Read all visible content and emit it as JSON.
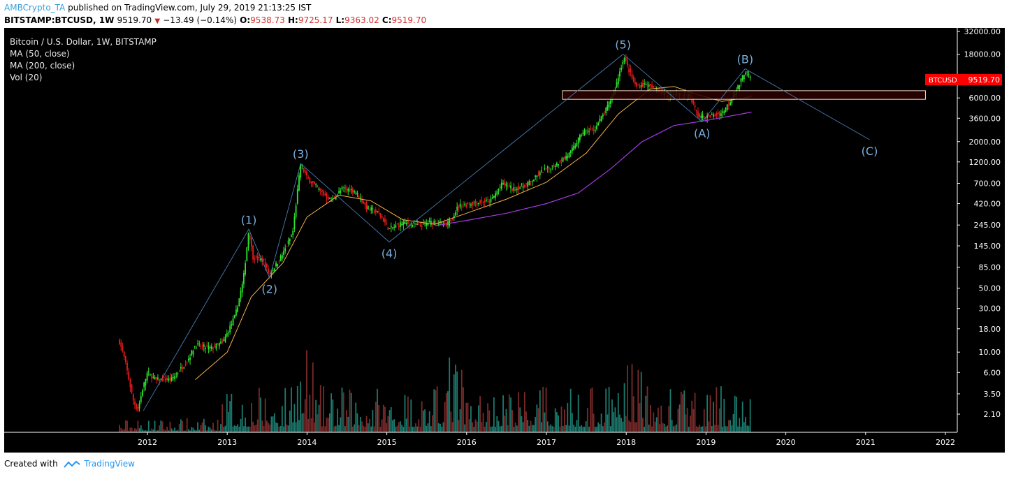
{
  "header": {
    "author": "AMBCrypto_TA",
    "published_text": "published on TradingView.com, July 29, 2019 21:13:25 IST",
    "symbol": "BITSTAMP:BTCUSD, 1W",
    "price": "9519.70",
    "change": "−13.49 (−0.14%)",
    "open_label": "O:",
    "open": "9538.73",
    "high_label": "H:",
    "high": "9725.17",
    "low_label": "L:",
    "low": "9363.02",
    "close_label": "C:",
    "close": "9519.70"
  },
  "legend": {
    "title": "Bitcoin / U.S. Dollar, 1W, BITSTAMP",
    "ma50": "MA (50, close)",
    "ma200": "MA (200, close)",
    "vol": "Vol (20)"
  },
  "footer": {
    "created_with": "Created with",
    "brand": "TradingView"
  },
  "colors": {
    "background": "#000000",
    "up": "#2ee62e",
    "down": "#e61a1a",
    "ma50": "#f2b24c",
    "ma200": "#a23adf",
    "wave_lines": "#4a7bb0",
    "wave_labels": "#7ab0e0",
    "zone_fill": "#2a0000",
    "zone_border": "#f0d8c0",
    "price_tag": "#ff0000",
    "vol_up": "#1b7a6e",
    "vol_down": "#7a2a2a"
  },
  "chart_data": {
    "type": "candlestick",
    "scale": "log",
    "x_labels": [
      "2012",
      "2013",
      "2014",
      "2015",
      "2016",
      "2017",
      "2018",
      "2019",
      "2020",
      "2021",
      "2022"
    ],
    "y_ticks": [
      "32000.00",
      "18000.00",
      "10000.00",
      "6000.00",
      "3600.00",
      "2000.00",
      "1200.00",
      "700.00",
      "420.00",
      "245.00",
      "145.00",
      "85.00",
      "50.00",
      "30.00",
      "18.00",
      "10.00",
      "6.00",
      "3.50",
      "2.10"
    ],
    "price_tag": {
      "label": "BTCUSD",
      "value": "9519.70"
    },
    "price_path": [
      {
        "t": 2011.65,
        "p": 13
      },
      {
        "t": 2011.72,
        "p": 8
      },
      {
        "t": 2011.82,
        "p": 3
      },
      {
        "t": 2011.88,
        "p": 2.3
      },
      {
        "t": 2011.94,
        "p": 4
      },
      {
        "t": 2012.0,
        "p": 6
      },
      {
        "t": 2012.1,
        "p": 5
      },
      {
        "t": 2012.3,
        "p": 5
      },
      {
        "t": 2012.5,
        "p": 8
      },
      {
        "t": 2012.6,
        "p": 12
      },
      {
        "t": 2012.8,
        "p": 11
      },
      {
        "t": 2012.95,
        "p": 13
      },
      {
        "t": 2013.1,
        "p": 25
      },
      {
        "t": 2013.2,
        "p": 60
      },
      {
        "t": 2013.27,
        "p": 220
      },
      {
        "t": 2013.32,
        "p": 110
      },
      {
        "t": 2013.45,
        "p": 100
      },
      {
        "t": 2013.53,
        "p": 70
      },
      {
        "t": 2013.7,
        "p": 120
      },
      {
        "t": 2013.82,
        "p": 200
      },
      {
        "t": 2013.92,
        "p": 1150
      },
      {
        "t": 2014.0,
        "p": 800
      },
      {
        "t": 2014.15,
        "p": 600
      },
      {
        "t": 2014.3,
        "p": 450
      },
      {
        "t": 2014.45,
        "p": 620
      },
      {
        "t": 2014.6,
        "p": 580
      },
      {
        "t": 2014.75,
        "p": 380
      },
      {
        "t": 2014.9,
        "p": 330
      },
      {
        "t": 2015.03,
        "p": 220
      },
      {
        "t": 2015.2,
        "p": 260
      },
      {
        "t": 2015.4,
        "p": 240
      },
      {
        "t": 2015.6,
        "p": 270
      },
      {
        "t": 2015.75,
        "p": 240
      },
      {
        "t": 2015.9,
        "p": 400
      },
      {
        "t": 2016.05,
        "p": 420
      },
      {
        "t": 2016.3,
        "p": 450
      },
      {
        "t": 2016.45,
        "p": 700
      },
      {
        "t": 2016.6,
        "p": 600
      },
      {
        "t": 2016.8,
        "p": 720
      },
      {
        "t": 2016.95,
        "p": 950
      },
      {
        "t": 2017.1,
        "p": 1100
      },
      {
        "t": 2017.3,
        "p": 1500
      },
      {
        "t": 2017.45,
        "p": 2500
      },
      {
        "t": 2017.6,
        "p": 2700
      },
      {
        "t": 2017.75,
        "p": 4500
      },
      {
        "t": 2017.85,
        "p": 7000
      },
      {
        "t": 2017.97,
        "p": 17000
      },
      {
        "t": 2018.05,
        "p": 11000
      },
      {
        "t": 2018.12,
        "p": 8000
      },
      {
        "t": 2018.25,
        "p": 8500
      },
      {
        "t": 2018.35,
        "p": 7500
      },
      {
        "t": 2018.5,
        "p": 6500
      },
      {
        "t": 2018.65,
        "p": 6600
      },
      {
        "t": 2018.8,
        "p": 6300
      },
      {
        "t": 2018.9,
        "p": 3800
      },
      {
        "t": 2019.0,
        "p": 3700
      },
      {
        "t": 2019.2,
        "p": 4100
      },
      {
        "t": 2019.3,
        "p": 5500
      },
      {
        "t": 2019.42,
        "p": 8500
      },
      {
        "t": 2019.49,
        "p": 12000
      },
      {
        "t": 2019.57,
        "p": 9519.7
      }
    ],
    "ma50": [
      {
        "t": 2012.6,
        "p": 5
      },
      {
        "t": 2013.0,
        "p": 10
      },
      {
        "t": 2013.3,
        "p": 40
      },
      {
        "t": 2013.7,
        "p": 95
      },
      {
        "t": 2014.0,
        "p": 300
      },
      {
        "t": 2014.4,
        "p": 520
      },
      {
        "t": 2014.8,
        "p": 450
      },
      {
        "t": 2015.2,
        "p": 280
      },
      {
        "t": 2015.6,
        "p": 250
      },
      {
        "t": 2016.0,
        "p": 330
      },
      {
        "t": 2016.5,
        "p": 470
      },
      {
        "t": 2017.0,
        "p": 720
      },
      {
        "t": 2017.5,
        "p": 1500
      },
      {
        "t": 2017.9,
        "p": 4000
      },
      {
        "t": 2018.3,
        "p": 7500
      },
      {
        "t": 2018.6,
        "p": 8000
      },
      {
        "t": 2018.9,
        "p": 6500
      },
      {
        "t": 2019.2,
        "p": 5500
      },
      {
        "t": 2019.57,
        "p": 6200
      }
    ],
    "ma200": [
      {
        "t": 2015.6,
        "p": 240
      },
      {
        "t": 2016.0,
        "p": 275
      },
      {
        "t": 2016.5,
        "p": 330
      },
      {
        "t": 2017.0,
        "p": 420
      },
      {
        "t": 2017.4,
        "p": 550
      },
      {
        "t": 2017.8,
        "p": 1000
      },
      {
        "t": 2018.2,
        "p": 2000
      },
      {
        "t": 2018.6,
        "p": 3000
      },
      {
        "t": 2019.0,
        "p": 3400
      },
      {
        "t": 2019.57,
        "p": 4200
      }
    ],
    "waves": [
      {
        "label": "(1)",
        "t": 2013.27,
        "p": 220
      },
      {
        "label": "(2)",
        "t": 2013.53,
        "p": 65
      },
      {
        "label": "(3)",
        "t": 2013.92,
        "p": 1150
      },
      {
        "label": "(4)",
        "t": 2015.03,
        "p": 160
      },
      {
        "label": "(5)",
        "t": 2017.96,
        "p": 18000
      },
      {
        "label": "(A)",
        "t": 2018.95,
        "p": 3300
      },
      {
        "label": "(B)",
        "t": 2019.49,
        "p": 12500
      },
      {
        "label": "(C)",
        "t": 2021.05,
        "p": 2100
      }
    ],
    "wave_start": {
      "t": 2011.95,
      "p": 2.3
    },
    "zone": {
      "t0": 2017.2,
      "t1": 2021.75,
      "p_low": 5800,
      "p_high": 7200
    }
  }
}
